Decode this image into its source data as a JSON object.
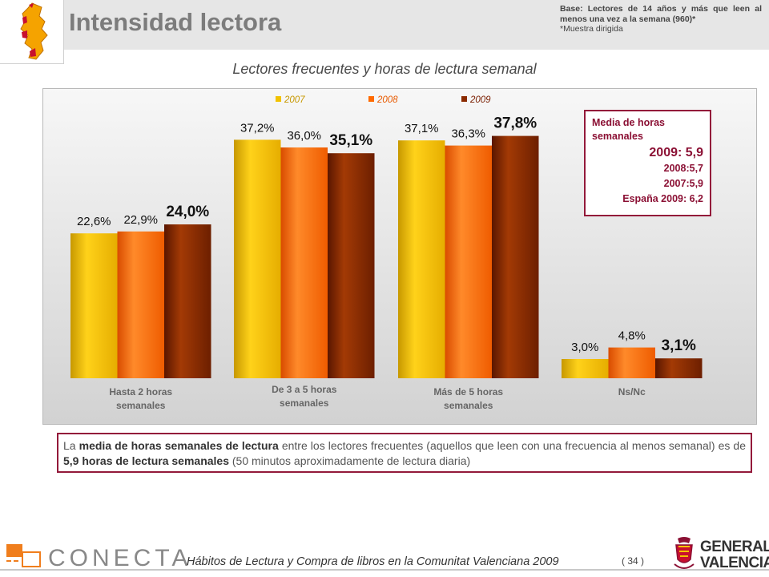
{
  "header": {
    "title": "Intensidad lectora",
    "base_line1": "Base: Lectores de 14 años y más que leen al menos una vez a la semana (960)*",
    "base_line2": "*Muestra dirigida"
  },
  "chart_data": {
    "type": "bar",
    "title": "Lectores frecuentes y horas de lectura semanal",
    "categories": [
      "Hasta 2 horas semanales",
      "De 3 a 5 horas semanales",
      "Más de 5 horas semanales",
      "Ns/Nc"
    ],
    "series": [
      {
        "name": "2007",
        "values": [
          22.6,
          37.2,
          37.1,
          3.0
        ],
        "labels": [
          "22,6%",
          "37,2%",
          "37,1%",
          "3,0%"
        ],
        "color": "#f2c200"
      },
      {
        "name": "2008",
        "values": [
          22.9,
          36.0,
          36.3,
          4.8
        ],
        "labels": [
          "22,9%",
          "36,0%",
          "36,3%",
          "4,8%"
        ],
        "color": "#ff6a00"
      },
      {
        "name": "2009",
        "values": [
          24.0,
          35.1,
          37.8,
          3.1
        ],
        "labels": [
          "24,0%",
          "35,1%",
          "37,8%",
          "3,1%"
        ],
        "color": "#8a2a00"
      }
    ],
    "ylim": [
      0,
      40
    ],
    "legend_position": "top",
    "grid": false
  },
  "media_box": {
    "header": "Media de horas semanales",
    "main": "2009: 5,9",
    "line2008": "2008:5,7",
    "line2007": "2007:5,9",
    "spain": "España 2009: 6,2"
  },
  "summary": {
    "t1": "La ",
    "b1": "media de horas semanales de lectura",
    "t2": " entre los lectores frecuentes (aquellos que leen con una frecuencia al menos semanal) es de ",
    "b2": "5,9 horas de lectura semanales",
    "t3": " (50 minutos aproximadamente de lectura diaria)"
  },
  "footer": {
    "brand": "CONECTA",
    "study": "Hábitos de Lectura y Compra de libros en la Comunitat Valenciana 2009",
    "page": "( 34 )",
    "gv_line1": "GENERALITAT",
    "gv_line2": "VALENCIANA"
  },
  "colors": {
    "accent": "#93193a",
    "y2007": "#f2c200",
    "y2008": "#ff6a00",
    "y2009": "#8a2a00"
  },
  "icons": [
    "region-map-logo",
    "conecta-logo",
    "generalitat-logo"
  ]
}
